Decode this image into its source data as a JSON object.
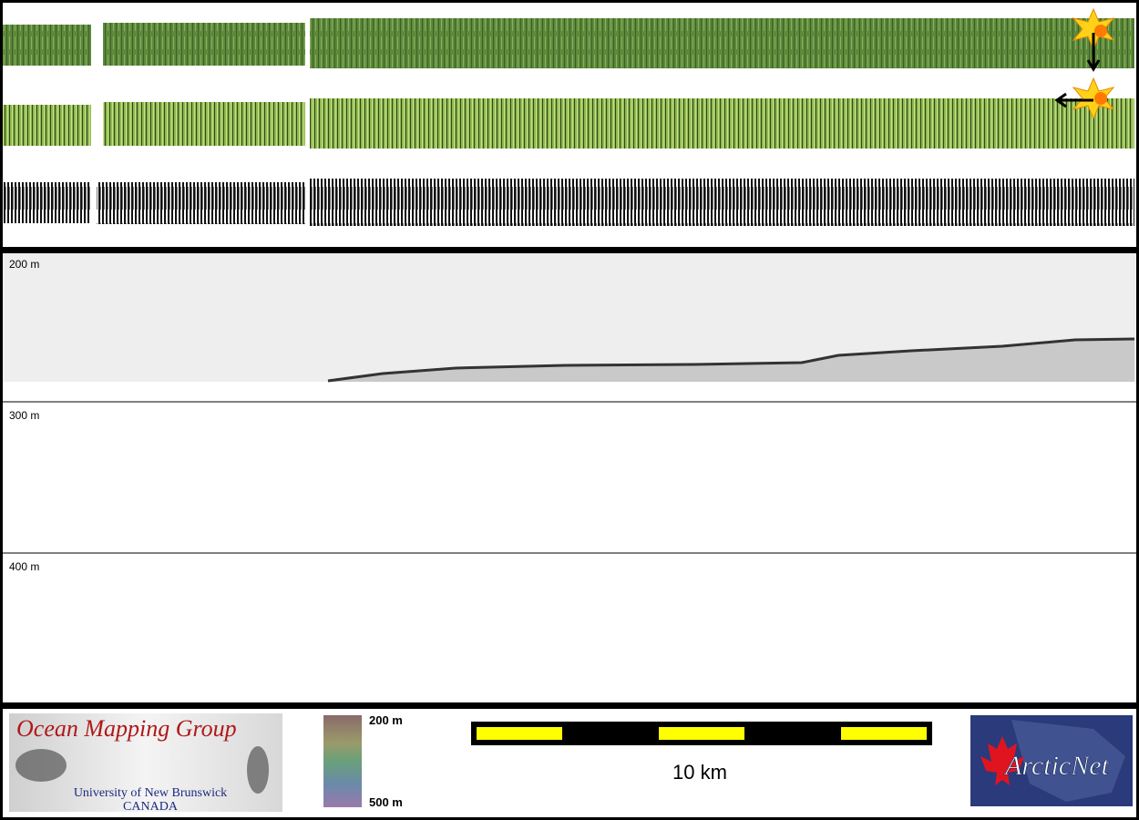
{
  "water_column": {
    "depth_labels": [
      "200 m",
      "300 m",
      "400 m"
    ]
  },
  "logo": {
    "title": "Ocean Mapping Group",
    "university": "University of New Brunswick",
    "country": "CANADA"
  },
  "colorbar": {
    "top_label": "200 m",
    "bottom_label": "500 m"
  },
  "scale_bar": {
    "label": "10 km"
  },
  "partner_logo": {
    "title": "ArcticNet"
  }
}
